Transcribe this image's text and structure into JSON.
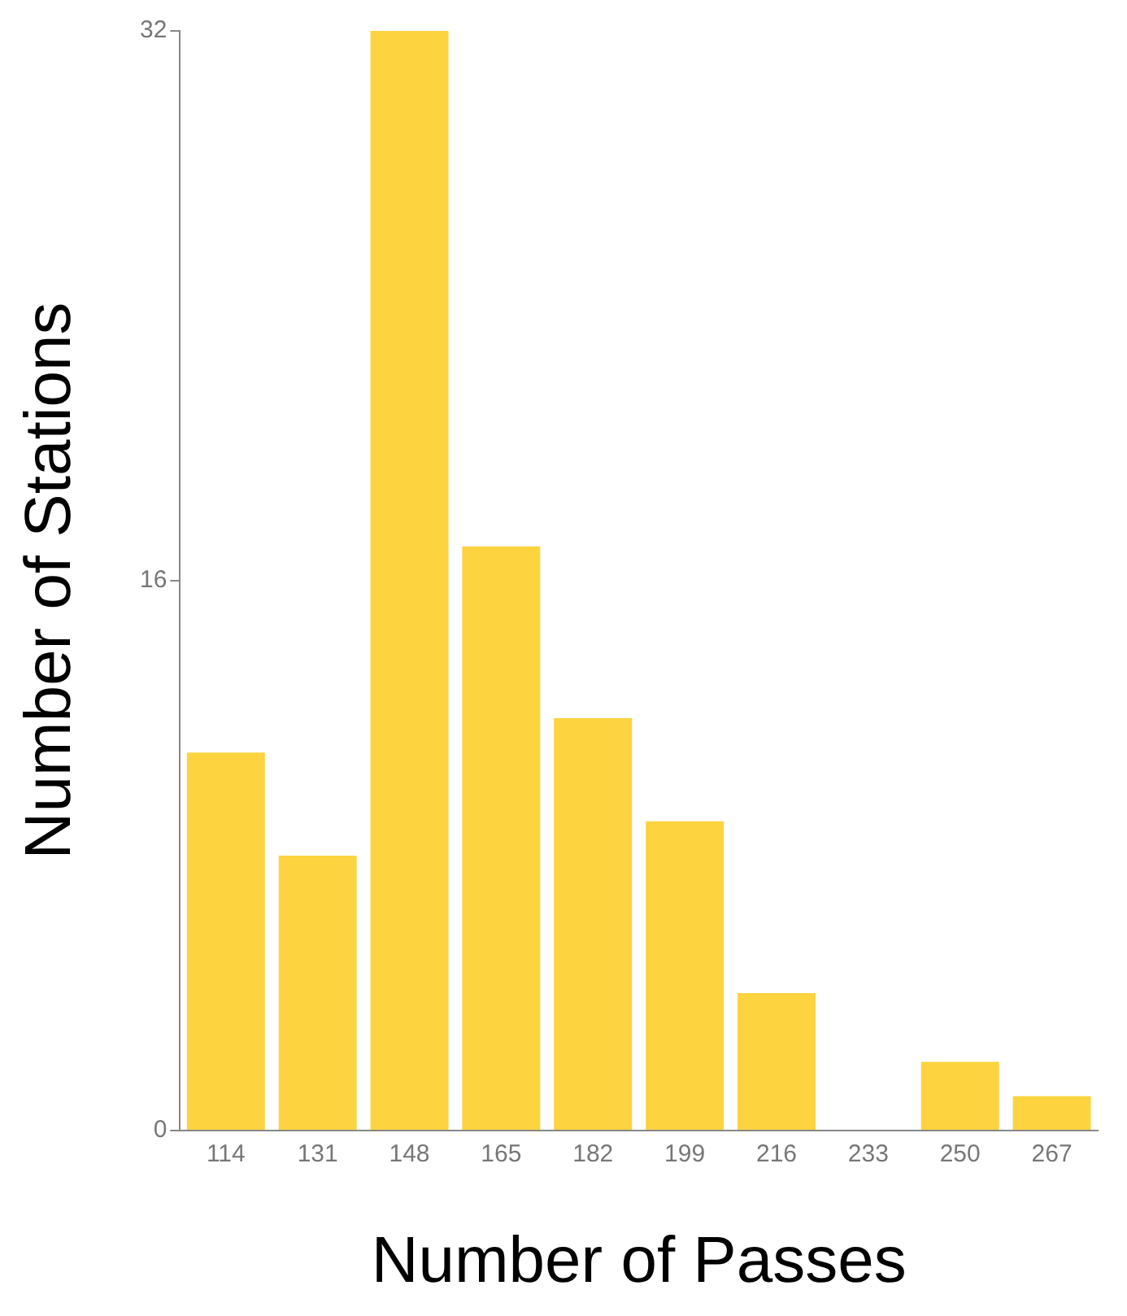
{
  "chart_data": {
    "type": "bar",
    "xlabel": "Number of Passes",
    "ylabel": "Number of Stations",
    "categories": [
      "114",
      "131",
      "148",
      "165",
      "182",
      "199",
      "216",
      "233",
      "250",
      "267"
    ],
    "values": [
      11,
      8,
      32,
      17,
      12,
      9,
      4,
      0,
      2,
      1
    ],
    "color": "#fdd33f",
    "ylim": [
      0,
      32
    ],
    "yticks": [
      0,
      16,
      32
    ]
  }
}
